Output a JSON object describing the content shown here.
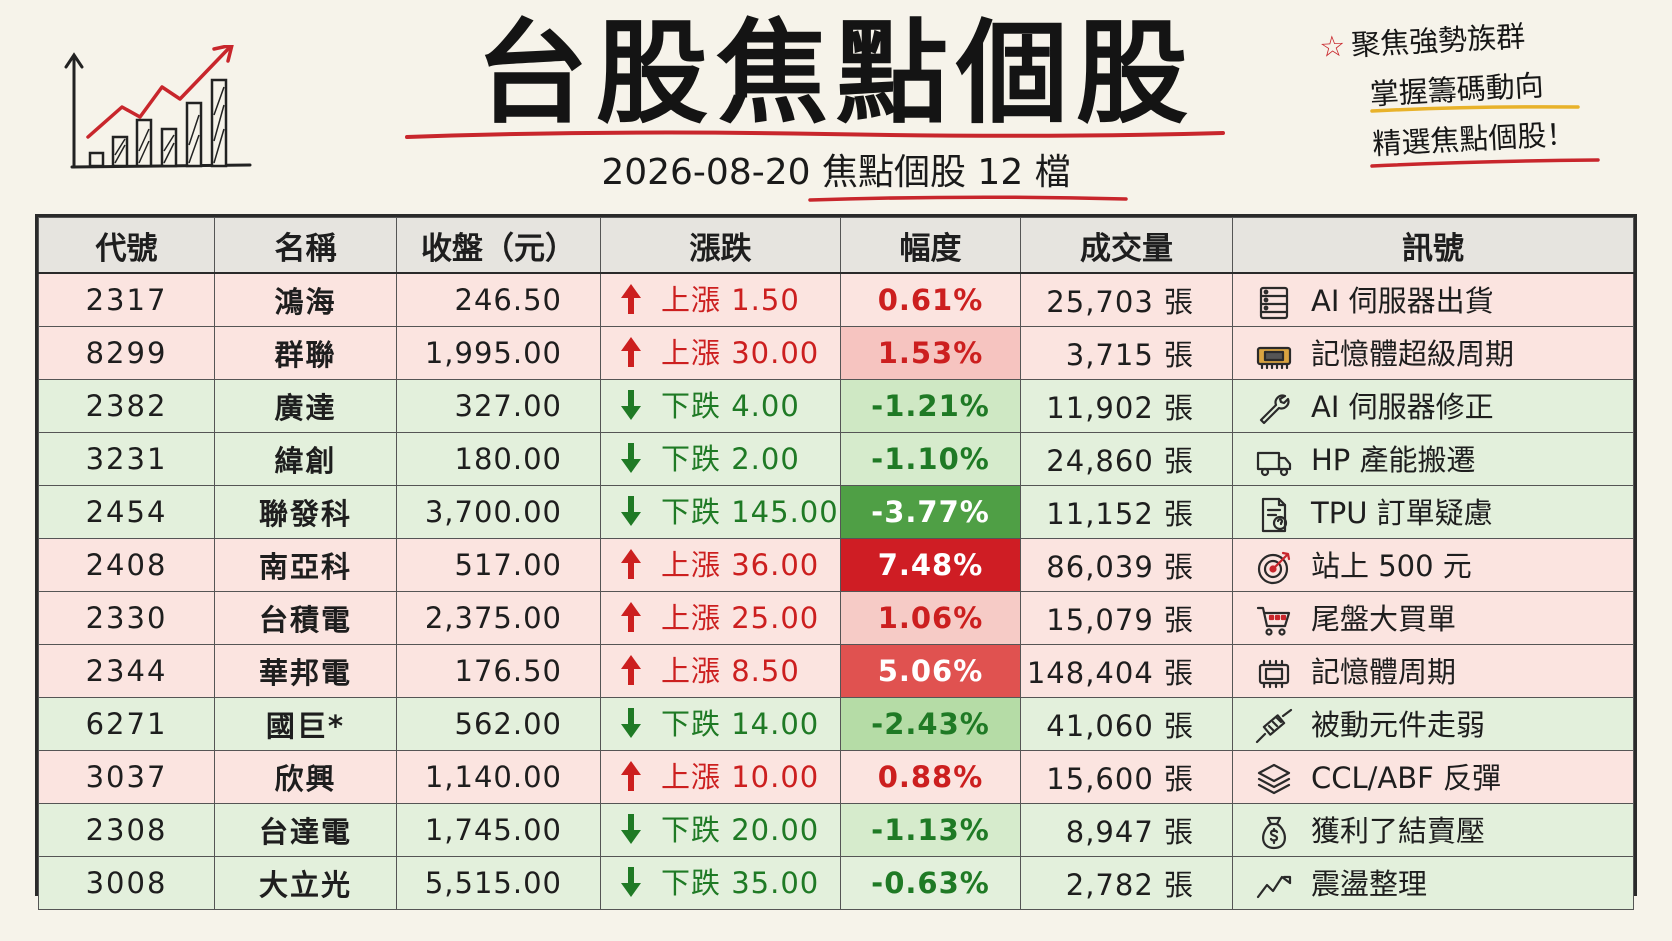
{
  "header": {
    "title": "台股焦點個股",
    "subtitle_date": "2026-08-20",
    "subtitle_label": "焦點個股 12 檔"
  },
  "note": {
    "line1": "聚焦強勢族群",
    "line2": "掌握籌碼動向",
    "line3": "精選焦點個股！"
  },
  "colors": {
    "up_text": "#cc1f1f",
    "down_text": "#1f7a25",
    "up_row": "#fbe4e0",
    "down_row": "#e3f0dc"
  },
  "table": {
    "headers": [
      "代號",
      "名稱",
      "收盤（元）",
      "漲跌",
      "幅度",
      "成交量",
      "訊號"
    ],
    "rows": [
      {
        "code": "2317",
        "name": "鴻海",
        "close": "246.50",
        "dir": "up",
        "change": "上漲 1.50",
        "pct": "0.61%",
        "volume": "25,703 張",
        "signal": "AI 伺服器出貨",
        "icon": "server-icon",
        "pct_bg": "#fbe4e0",
        "pct_color": "#cc1f1f"
      },
      {
        "code": "8299",
        "name": "群聯",
        "close": "1,995.00",
        "dir": "up",
        "change": "上漲 30.00",
        "pct": "1.53%",
        "volume": "3,715 張",
        "signal": "記憶體超級周期",
        "icon": "memory-chip-icon",
        "pct_bg": "#f6c4c0",
        "pct_color": "#cc1f1f"
      },
      {
        "code": "2382",
        "name": "廣達",
        "close": "327.00",
        "dir": "down",
        "change": "下跌 4.00",
        "pct": "-1.21%",
        "volume": "11,902 張",
        "signal": "AI 伺服器修正",
        "icon": "wrench-icon",
        "pct_bg": "#cfe8c4",
        "pct_color": "#1f7a25"
      },
      {
        "code": "3231",
        "name": "緯創",
        "close": "180.00",
        "dir": "down",
        "change": "下跌 2.00",
        "pct": "-1.10%",
        "volume": "24,860 張",
        "signal": "HP 產能搬遷",
        "icon": "truck-icon",
        "pct_bg": "#d6ebcc",
        "pct_color": "#1f7a25"
      },
      {
        "code": "2454",
        "name": "聯發科",
        "close": "3,700.00",
        "dir": "down",
        "change": "下跌 145.00",
        "pct": "-3.77%",
        "volume": "11,152 張",
        "signal": "TPU 訂單疑慮",
        "icon": "document-question-icon",
        "pct_bg": "#4f9f45",
        "pct_color": "#ffffff"
      },
      {
        "code": "2408",
        "name": "南亞科",
        "close": "517.00",
        "dir": "up",
        "change": "上漲 36.00",
        "pct": "7.48%",
        "volume": "86,039 張",
        "signal": "站上 500 元",
        "icon": "target-icon",
        "pct_bg": "#cf1d24",
        "pct_color": "#ffffff"
      },
      {
        "code": "2330",
        "name": "台積電",
        "close": "2,375.00",
        "dir": "up",
        "change": "上漲 25.00",
        "pct": "1.06%",
        "volume": "15,079 張",
        "signal": "尾盤大買單",
        "icon": "shopping-cart-icon",
        "pct_bg": "#f6cbc6",
        "pct_color": "#cc1f1f"
      },
      {
        "code": "2344",
        "name": "華邦電",
        "close": "176.50",
        "dir": "up",
        "change": "上漲 8.50",
        "pct": "5.06%",
        "volume": "148,404 張",
        "signal": "記憶體周期",
        "icon": "chip-icon",
        "pct_bg": "#e05250",
        "pct_color": "#ffffff"
      },
      {
        "code": "6271",
        "name": "國巨*",
        "close": "562.00",
        "dir": "down",
        "change": "下跌 14.00",
        "pct": "-2.43%",
        "volume": "41,060 張",
        "signal": "被動元件走弱",
        "icon": "resistor-icon",
        "pct_bg": "#b5dca6",
        "pct_color": "#1f7a25"
      },
      {
        "code": "3037",
        "name": "欣興",
        "close": "1,140.00",
        "dir": "up",
        "change": "上漲 10.00",
        "pct": "0.88%",
        "volume": "15,600 張",
        "signal": "CCL/ABF 反彈",
        "icon": "layers-icon",
        "pct_bg": "#fbe4e0",
        "pct_color": "#cc1f1f"
      },
      {
        "code": "2308",
        "name": "台達電",
        "close": "1,745.00",
        "dir": "down",
        "change": "下跌 20.00",
        "pct": "-1.13%",
        "volume": "8,947 張",
        "signal": "獲利了結賣壓",
        "icon": "money-bag-icon",
        "pct_bg": "#d6ebcc",
        "pct_color": "#1f7a25"
      },
      {
        "code": "3008",
        "name": "大立光",
        "close": "5,515.00",
        "dir": "down",
        "change": "下跌 35.00",
        "pct": "-0.63%",
        "volume": "2,782 張",
        "signal": "震盪整理",
        "icon": "zigzag-trend-icon",
        "pct_bg": "#e3f0dc",
        "pct_color": "#1f7a25"
      }
    ]
  }
}
